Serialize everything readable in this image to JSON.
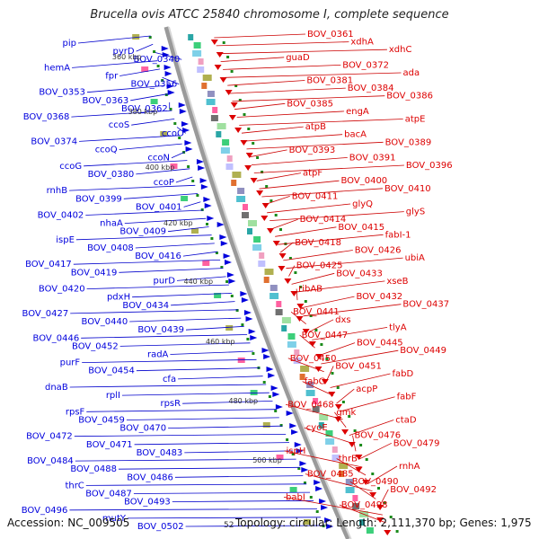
{
  "header": {
    "title": "Brucella ovis ATCC 25840 chromosome I, complete sequence"
  },
  "footer": {
    "accession": "Accession: NC_009505",
    "tick_52": "52",
    "topology": "Topology: circular; Length: 2,111,370 bp; Genes: 1,975"
  },
  "colors": {
    "minus_strand": "#0000dd",
    "plus_strand": "#dd0000",
    "connector_minus": "#0000cc",
    "connector_plus": "#cc0000",
    "ruler_dots": "#1a8a1a",
    "backbone": "#9a9a9a"
  },
  "kbp_ticks": [
    "360 kbp",
    "380 kbp",
    "400 kbp",
    "420 kbp",
    "440 kbp",
    "460 kbp",
    "480 kbp",
    "500 kbp"
  ],
  "left_labels": [
    "pip",
    "pyrD",
    "BOV_0340",
    "hemA",
    "fpr",
    "BOV_0356",
    "BOV_0353",
    "BOV_0363",
    "BOV_0362",
    "BOV_0368",
    "ccoS",
    "ccoO",
    "BOV_0374",
    "ccoQ",
    "ccoN",
    "ccoG",
    "BOV_0380",
    "ccoP",
    "rnhB",
    "BOV_0399",
    "BOV_0401",
    "BOV_0402",
    "nhaA",
    "BOV_0409",
    "ispE",
    "BOV_0408",
    "BOV_0416",
    "BOV_0417",
    "BOV_0419",
    "purD",
    "BOV_0420",
    "pdxH",
    "BOV_0434",
    "BOV_0427",
    "BOV_0440",
    "BOV_0439",
    "BOV_0446",
    "BOV_0452",
    "radA",
    "purF",
    "BOV_0454",
    "cfa",
    "dnaB",
    "rplI",
    "rpsR",
    "rpsF",
    "BOV_0459",
    "BOV_0470",
    "BOV_0472",
    "BOV_0471",
    "BOV_0483",
    "BOV_0484",
    "BOV_0488",
    "BOV_0486",
    "thrC",
    "BOV_0487",
    "BOV_0493",
    "BOV_0496",
    "mutY",
    "BOV_0502"
  ],
  "right_labels": [
    "BOV_0361",
    "xdhA",
    "xdhC",
    "guaD",
    "BOV_0372",
    "ada",
    "BOV_0381",
    "BOV_0384",
    "BOV_0386",
    "BOV_0385",
    "engA",
    "atpE",
    "atpB",
    "bacA",
    "BOV_0389",
    "BOV_0393",
    "BOV_0391",
    "BOV_0396",
    "atpF",
    "BOV_0400",
    "BOV_0410",
    "BOV_0411",
    "glyQ",
    "glyS",
    "BOV_0414",
    "BOV_0415",
    "fabI-1",
    "BOV_0418",
    "BOV_0426",
    "ubiA",
    "BOV_0425",
    "BOV_0433",
    "xseB",
    "ribAB",
    "BOV_0432",
    "BOV_0437",
    "BOV_0441",
    "dxs",
    "tlyA",
    "BOV_0447",
    "BOV_0445",
    "BOV_0449",
    "BOV_0450",
    "BOV_0451",
    "fabD",
    "fabG",
    "acpP",
    "fabF",
    "BOV_0468",
    "gmk",
    "ctaD",
    "cyoE",
    "BOV_0476",
    "BOV_0479",
    "ispH",
    "thrB",
    "rnhA",
    "BOV_0485",
    "BOV_0490",
    "BOV_0492",
    "babI",
    "BOV_0498"
  ]
}
